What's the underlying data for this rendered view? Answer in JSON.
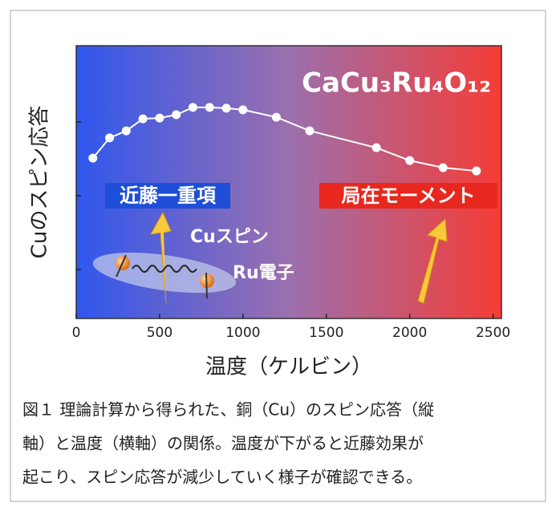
{
  "chart_data": {
    "type": "line",
    "title": "CaCu₃Ru₄O₁₂",
    "x_label": "温度（ケルビン）",
    "y_label": "Cuのスピン応答",
    "x": [
      100,
      200,
      300,
      400,
      500,
      600,
      700,
      800,
      900,
      1000,
      1200,
      1400,
      1800,
      2000,
      2200,
      2400
    ],
    "series": [
      {
        "color": "#ffffff",
        "values": [
          0.588,
          0.662,
          0.688,
          0.732,
          0.735,
          0.747,
          0.774,
          0.774,
          0.771,
          0.765,
          0.738,
          0.688,
          0.626,
          0.579,
          0.553,
          0.541
        ]
      }
    ],
    "xlim": [
      0,
      2550
    ],
    "ylim": [
      0,
      1
    ],
    "xticks": [
      0,
      500,
      1000,
      1500,
      2000,
      2500
    ],
    "annotations": {
      "kondo": "近藤一重項",
      "local": "局在モーメント",
      "cu_spin": "Cuスピン",
      "ru_electron": "Ru電子"
    },
    "caption": [
      "図１ 理論計算から得られた、銅（Cu）のスピン応答（縦",
      "軸）と温度（横軸）の関係。温度が下がると近藤効果が",
      "起こり、スピン応答が減少していく様子が確認できる。"
    ]
  }
}
